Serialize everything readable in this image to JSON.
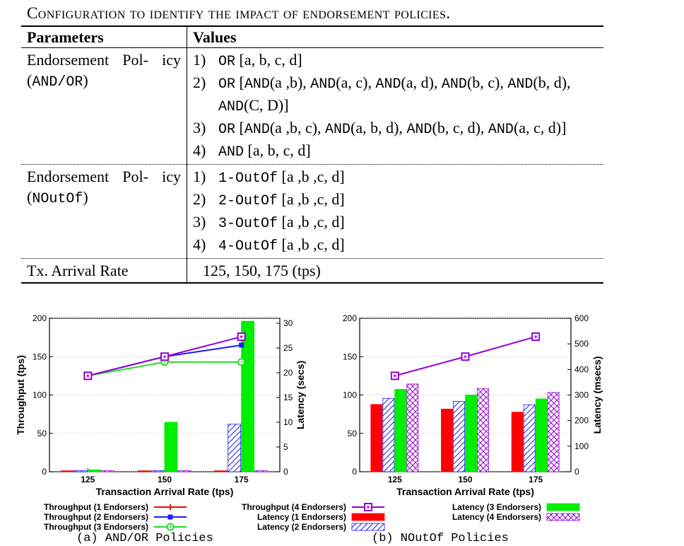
{
  "caption": "Configuration to identify the impact of endorsement policies.",
  "table": {
    "headers": [
      "Parameters",
      "Values"
    ],
    "rows": [
      {
        "param_text": "Endorsement Pol- icy (",
        "param_mono": "AND/OR",
        "param_close": ")",
        "values": [
          {
            "num": "1)",
            "kw": "OR",
            "rest": " [a, b, c, d]"
          },
          {
            "num": "2)",
            "parts": [
              {
                "t": "OR",
                "m": true
              },
              {
                "t": " [",
                "m": false
              },
              {
                "t": "AND",
                "m": true
              },
              {
                "t": "(a ,b), ",
                "m": false
              },
              {
                "t": "AND",
                "m": true
              },
              {
                "t": "(a, c), ",
                "m": false
              },
              {
                "t": "AND",
                "m": true
              },
              {
                "t": "(a, d), ",
                "m": false
              },
              {
                "t": "AND",
                "m": true
              },
              {
                "t": "(b, c), ",
                "m": false
              },
              {
                "t": "AND",
                "m": true
              },
              {
                "t": "(b, d), ",
                "m": false
              },
              {
                "t": "AND",
                "m": true
              },
              {
                "t": "(C, D)]",
                "m": false
              }
            ]
          },
          {
            "num": "3)",
            "parts": [
              {
                "t": "OR",
                "m": true
              },
              {
                "t": " [",
                "m": false
              },
              {
                "t": "AND",
                "m": true
              },
              {
                "t": "(a ,b, c), ",
                "m": false
              },
              {
                "t": "AND",
                "m": true
              },
              {
                "t": "(a, b, d), ",
                "m": false
              },
              {
                "t": "AND",
                "m": true
              },
              {
                "t": "(b, c, d), ",
                "m": false
              },
              {
                "t": "AND",
                "m": true
              },
              {
                "t": "(a, c, d)]",
                "m": false
              }
            ]
          },
          {
            "num": "4)",
            "kw": "AND",
            "rest": " [a, b, c, d]"
          }
        ]
      },
      {
        "param_text": "Endorsement Pol- icy (",
        "param_mono": "NOutOf",
        "param_close": ")",
        "values": [
          {
            "num": "1)",
            "kw": "1-OutOf",
            "rest": " [a ,b ,c, d]"
          },
          {
            "num": "2)",
            "kw": "2-OutOf",
            "rest": " [a ,b ,c, d]"
          },
          {
            "num": "3)",
            "kw": "3-OutOf",
            "rest": " [a ,b ,c, d]"
          },
          {
            "num": "4)",
            "kw": "4-OutOf",
            "rest": " [a ,b ,c, d]"
          }
        ]
      },
      {
        "param_text": "Tx. Arrival Rate",
        "value_text": "125, 150, 175 (tps)"
      }
    ]
  },
  "chart_data": [
    {
      "type": "bar",
      "subcaption": "(a) AND/OR Policies",
      "categories": [
        "125",
        "150",
        "175"
      ],
      "xlabel": "Transaction Arrival Rate (tps)",
      "ylabel": "Throughput (tps)",
      "y2label": "Latency (secs)",
      "ylim": [
        0,
        200
      ],
      "y2lim": [
        0,
        31
      ],
      "yticks": [
        "0",
        "50",
        "100",
        "150",
        "200"
      ],
      "y2ticks": [
        "0",
        "5",
        "10",
        "15",
        "20",
        "25",
        "30"
      ],
      "throughput_series": [
        {
          "name": "Throughput (1 Endorsers)",
          "color": "#ff0000",
          "marker": "plus",
          "values": [
            null,
            null,
            null
          ]
        },
        {
          "name": "Throughput (2 Endorsers)",
          "color": "#1a1aff",
          "marker": "square-filled",
          "values": [
            125,
            150,
            165
          ]
        },
        {
          "name": "Throughput (3 Endorsers)",
          "color": "#22dd22",
          "marker": "circle",
          "values": [
            125,
            143,
            143
          ]
        },
        {
          "name": "Throughput (4 Endorsers)",
          "color": "#9400d3",
          "marker": "square-open",
          "values": [
            125,
            150,
            176
          ]
        }
      ],
      "latency_series": [
        {
          "name": "Latency (1 Endorsers)",
          "color": "#ff0000",
          "fill": "solid",
          "values": [
            0.2,
            0.2,
            0.2
          ]
        },
        {
          "name": "Latency (2 Endorsers)",
          "color": "#1a1aff",
          "fill": "hatch",
          "values": [
            0.2,
            0.2,
            9.6
          ]
        },
        {
          "name": "Latency (3 Endorsers)",
          "color": "#00ee00",
          "fill": "solid",
          "values": [
            0.4,
            10.0,
            30.4
          ]
        },
        {
          "name": "Latency (4 Endorsers)",
          "color": "#9400d3",
          "fill": "crosshatch",
          "values": [
            0.2,
            0.2,
            0.2
          ]
        }
      ]
    },
    {
      "type": "bar",
      "subcaption": "(b) NOutOf Policies",
      "categories": [
        "125",
        "150",
        "175"
      ],
      "xlabel": "Transaction Arrival Rate (tps)",
      "ylabel": "Throughput (tps)",
      "y2label": "Latency (msecs)",
      "ylim": [
        0,
        200
      ],
      "y2lim": [
        0,
        600
      ],
      "yticks": [
        "0",
        "50",
        "100",
        "150",
        "200"
      ],
      "y2ticks": [
        "0",
        "100",
        "200",
        "300",
        "400",
        "500",
        "600"
      ],
      "throughput_series": [
        {
          "name": "Throughput (4 Endorsers)",
          "color": "#9400d3",
          "marker": "square-open",
          "values": [
            125,
            150,
            176
          ]
        }
      ],
      "latency_series": [
        {
          "name": "Latency (1 Endorsers)",
          "color": "#ff0000",
          "fill": "solid",
          "values": [
            263,
            245,
            233
          ]
        },
        {
          "name": "Latency (2 Endorsers)",
          "color": "#1a1aff",
          "fill": "hatch",
          "values": [
            287,
            275,
            262
          ]
        },
        {
          "name": "Latency (3 Endorsers)",
          "color": "#00ee00",
          "fill": "solid",
          "values": [
            322,
            300,
            285
          ]
        },
        {
          "name": "Latency (4 Endorsers)",
          "color": "#9400d3",
          "fill": "crosshatch",
          "values": [
            343,
            325,
            310
          ]
        }
      ]
    }
  ],
  "legend": [
    {
      "label": "Throughput (1 Endorsers)",
      "color": "#ff0000",
      "kind": "line",
      "marker": "plus"
    },
    {
      "label": "Throughput (2 Endorsers)",
      "color": "#1a1aff",
      "kind": "line",
      "marker": "square-filled"
    },
    {
      "label": "Throughput (3 Endorsers)",
      "color": "#22dd22",
      "kind": "line",
      "marker": "circle"
    },
    {
      "label": "Throughput (4 Endorsers)",
      "color": "#9400d3",
      "kind": "line",
      "marker": "square-open"
    },
    {
      "label": "Latency (1 Endorsers)",
      "color": "#ff0000",
      "kind": "bar",
      "fill": "solid"
    },
    {
      "label": "Latency (2 Endorsers)",
      "color": "#1a1aff",
      "kind": "bar",
      "fill": "hatch"
    },
    {
      "label": "Latency (3 Endorsers)",
      "color": "#00ee00",
      "kind": "bar",
      "fill": "solid"
    },
    {
      "label": "Latency (4 Endorsers)",
      "color": "#9400d3",
      "kind": "bar",
      "fill": "crosshatch"
    }
  ]
}
